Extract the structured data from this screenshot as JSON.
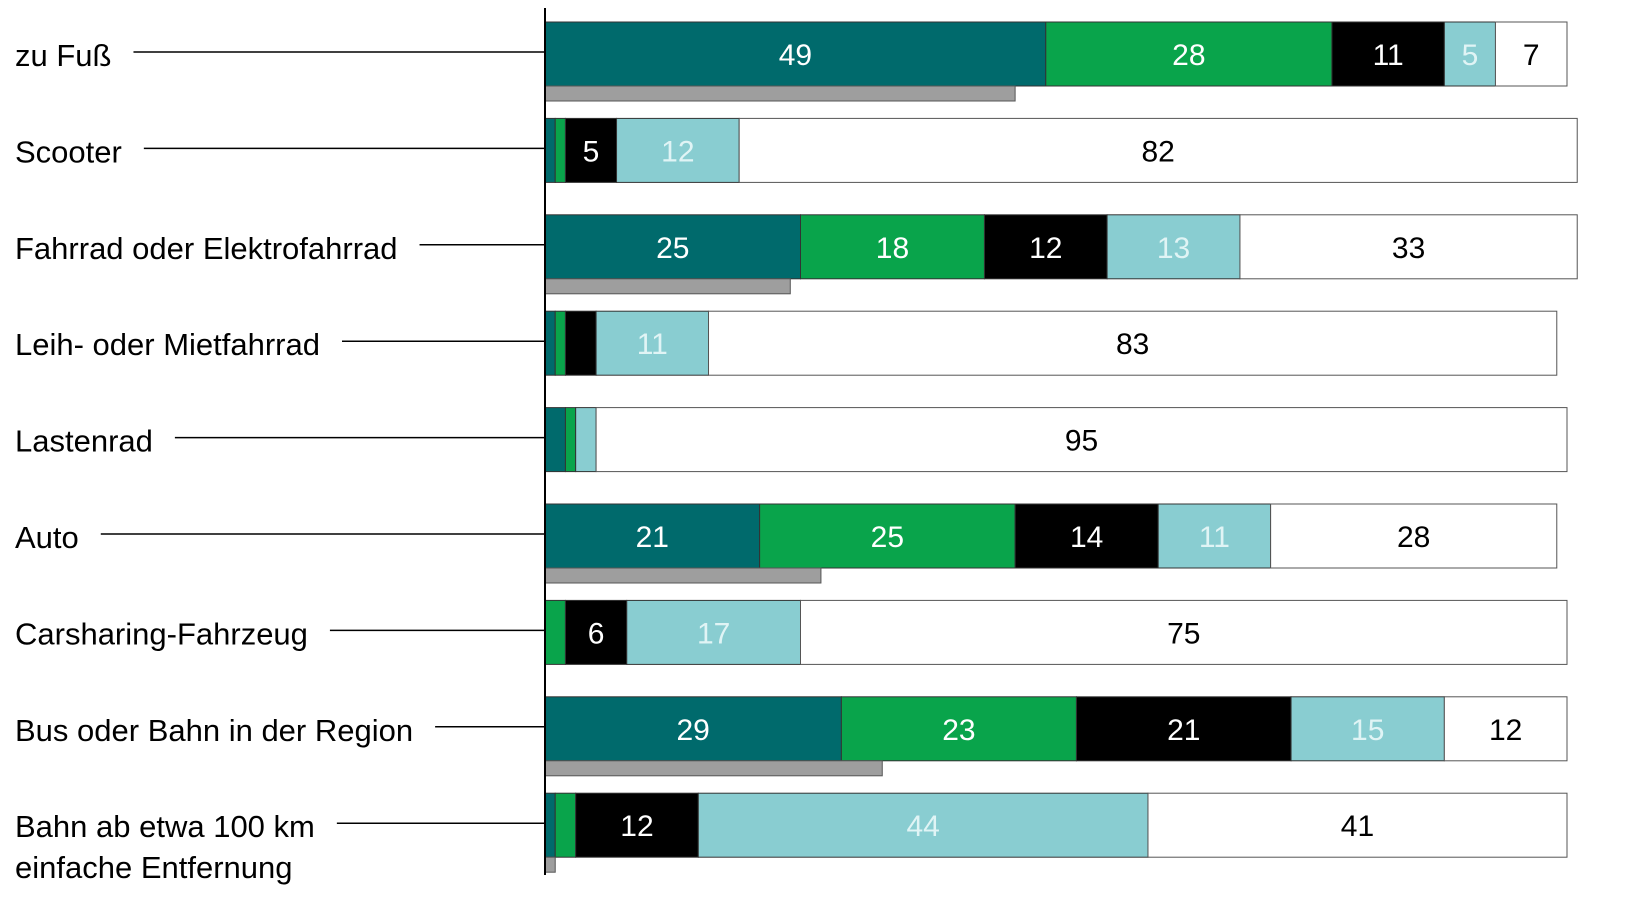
{
  "chart_data": {
    "type": "bar",
    "orientation": "horizontal",
    "stacked": true,
    "xlim": [
      0,
      100
    ],
    "categories": [
      [
        "zu Fuß"
      ],
      [
        "Scooter"
      ],
      [
        "Fahrrad oder Elektrofahrrad"
      ],
      [
        "Leih- oder Mietfahrrad"
      ],
      [
        "Lastenrad"
      ],
      [
        "Auto"
      ],
      [
        "Carsharing-Fahrzeug"
      ],
      [
        "Bus oder Bahn in der Region"
      ],
      [
        "Bahn ab etwa 100 km",
        "einfache Entfernung"
      ]
    ],
    "series": [
      {
        "color": "#006a6c",
        "values": [
          49,
          1,
          25,
          1,
          2,
          21,
          0,
          29,
          1
        ]
      },
      {
        "color": "#09a44b",
        "values": [
          28,
          1,
          18,
          1,
          1,
          25,
          2,
          23,
          2
        ]
      },
      {
        "color": "#000000",
        "values": [
          11,
          5,
          12,
          3,
          0,
          14,
          6,
          21,
          12
        ]
      },
      {
        "color": "#89cdd1",
        "values": [
          5,
          12,
          13,
          11,
          2,
          11,
          17,
          15,
          44
        ]
      },
      {
        "color": "#ffffff",
        "values": [
          7,
          82,
          33,
          83,
          95,
          28,
          75,
          12,
          41
        ]
      }
    ],
    "label_colors": [
      "#ffffff",
      "#ffffff",
      "#ffffff",
      "#e0f4f5",
      "#000000"
    ],
    "secondary_bar": {
      "color": "#9e9e9e",
      "values": [
        46,
        0,
        24,
        0,
        0,
        27,
        0,
        33,
        1
      ]
    }
  }
}
